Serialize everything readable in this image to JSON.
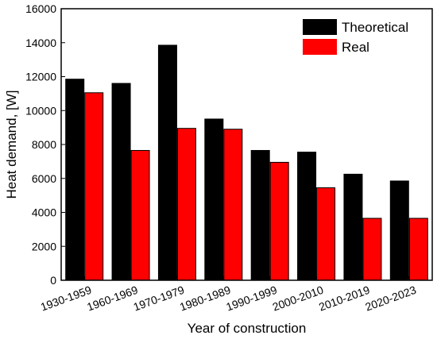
{
  "chart_data": {
    "type": "bar",
    "title": "",
    "xlabel": "Year of construction",
    "ylabel": "Heat demand, [W]",
    "categories": [
      "1930-1959",
      "1960-1969",
      "1970-1979",
      "1980-1989",
      "1990-1999",
      "2000-2010",
      "2010-2019",
      "2020-2023"
    ],
    "series": [
      {
        "name": "Theoretical",
        "color": "#000000",
        "values": [
          11850,
          11600,
          13850,
          9500,
          7650,
          7550,
          6250,
          5850
        ]
      },
      {
        "name": "Real",
        "color": "#ff0000",
        "values": [
          11050,
          7650,
          8950,
          8900,
          6950,
          5450,
          3650,
          3650
        ]
      }
    ],
    "ylim": [
      0,
      16000
    ],
    "yticks": [
      "0",
      "2000",
      "4000",
      "6000",
      "8000",
      "10000",
      "12000",
      "14000",
      "16000"
    ],
    "grid": false,
    "legend_position": "top-right",
    "tick_label_rotation_deg": -20
  }
}
